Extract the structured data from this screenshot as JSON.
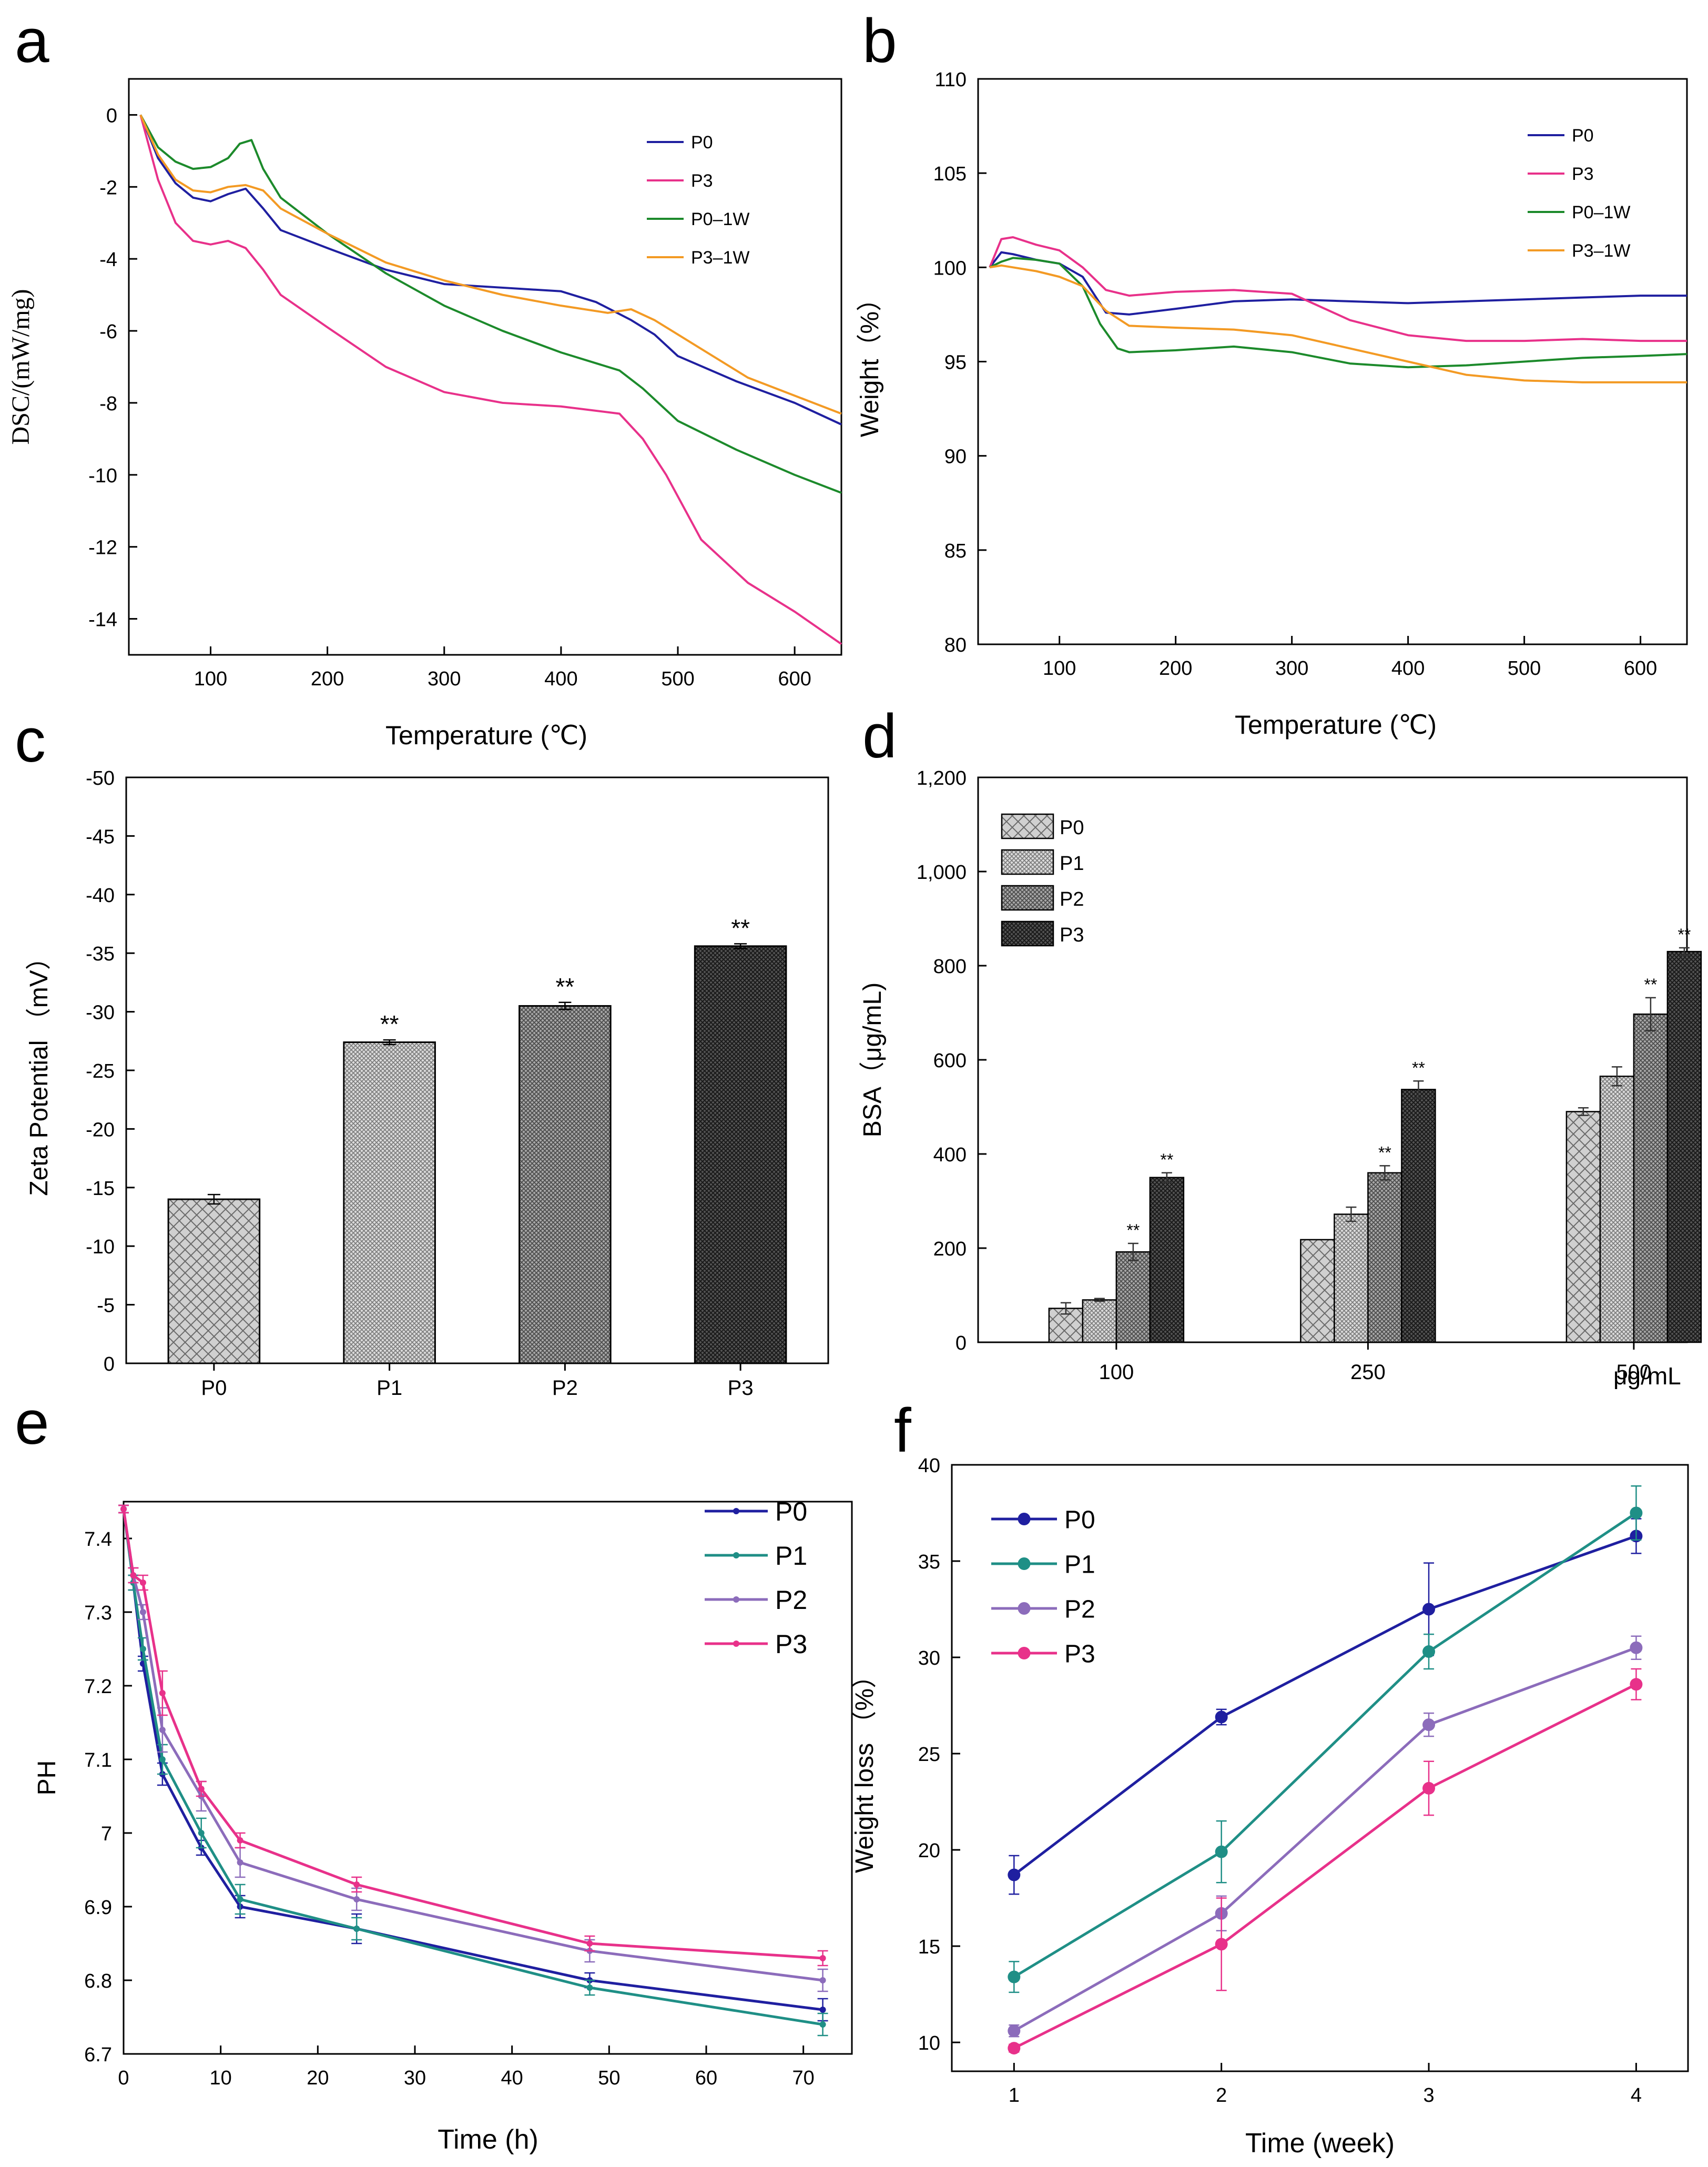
{
  "colors": {
    "P0": "#1f1fa0",
    "P3": "#e8318a",
    "P0_1W": "#1c8a2b",
    "P3_1W": "#f39a24",
    "P1": "#1f8f86",
    "P2": "#8c6cbb",
    "bar_P0": "#cfcfcf",
    "bar_P1": "#bdbdbd",
    "bar_P2": "#8f8f8f",
    "bar_P3": "#3a3a3a"
  },
  "chart_data": [
    {
      "id": "a",
      "panel_letter": "a",
      "type": "line",
      "xlabel": "Temperature (℃)",
      "ylabel": "DSC/(mW/mg)",
      "xlim": [
        30,
        640
      ],
      "ylim": [
        -15,
        1
      ],
      "xticks": [
        100,
        200,
        300,
        400,
        500,
        600
      ],
      "yticks": [
        0,
        -2,
        -4,
        -6,
        -8,
        -10,
        -12,
        -14
      ],
      "legend_position": "top-right",
      "series": [
        {
          "name": "P0",
          "color_key": "P0",
          "x": [
            40,
            55,
            70,
            85,
            100,
            115,
            130,
            145,
            160,
            200,
            250,
            300,
            350,
            400,
            430,
            460,
            480,
            500,
            550,
            600,
            640
          ],
          "y": [
            0,
            -1.2,
            -1.9,
            -2.3,
            -2.4,
            -2.2,
            -2.05,
            -2.6,
            -3.2,
            -3.7,
            -4.3,
            -4.7,
            -4.8,
            -4.9,
            -5.2,
            -5.7,
            -6.1,
            -6.7,
            -7.4,
            -8.0,
            -8.6
          ]
        },
        {
          "name": "P3",
          "color_key": "P3",
          "x": [
            40,
            55,
            70,
            85,
            100,
            115,
            130,
            145,
            160,
            200,
            250,
            300,
            350,
            400,
            450,
            470,
            490,
            520,
            560,
            600,
            640
          ],
          "y": [
            0,
            -1.8,
            -3.0,
            -3.5,
            -3.6,
            -3.5,
            -3.7,
            -4.3,
            -5.0,
            -5.9,
            -7.0,
            -7.7,
            -8.0,
            -8.1,
            -8.3,
            -9.0,
            -10.0,
            -11.8,
            -13.0,
            -13.8,
            -14.7
          ]
        },
        {
          "name": "P0–1W",
          "color_key": "P0_1W",
          "x": [
            40,
            55,
            70,
            85,
            100,
            115,
            125,
            135,
            145,
            160,
            200,
            250,
            300,
            350,
            400,
            450,
            470,
            500,
            550,
            600,
            640
          ],
          "y": [
            0,
            -0.9,
            -1.3,
            -1.5,
            -1.45,
            -1.2,
            -0.8,
            -0.7,
            -1.5,
            -2.3,
            -3.3,
            -4.4,
            -5.3,
            -6.0,
            -6.6,
            -7.1,
            -7.6,
            -8.5,
            -9.3,
            -10.0,
            -10.5
          ]
        },
        {
          "name": "P3–1W",
          "color_key": "P3_1W",
          "x": [
            40,
            55,
            70,
            85,
            100,
            115,
            130,
            145,
            160,
            200,
            250,
            300,
            350,
            400,
            440,
            460,
            480,
            520,
            560,
            600,
            640
          ],
          "y": [
            0,
            -1.1,
            -1.8,
            -2.1,
            -2.15,
            -2.0,
            -1.95,
            -2.1,
            -2.6,
            -3.3,
            -4.1,
            -4.6,
            -5.0,
            -5.3,
            -5.5,
            -5.4,
            -5.7,
            -6.5,
            -7.3,
            -7.8,
            -8.3
          ]
        }
      ]
    },
    {
      "id": "b",
      "panel_letter": "b",
      "type": "line",
      "xlabel": "Temperature (℃)",
      "ylabel": "Weight（%）",
      "xlim": [
        30,
        640
      ],
      "ylim": [
        80,
        110
      ],
      "xticks": [
        100,
        200,
        300,
        400,
        500,
        600
      ],
      "yticks": [
        80,
        85,
        90,
        95,
        100,
        105,
        110
      ],
      "legend_position": "top-right",
      "series": [
        {
          "name": "P0",
          "color_key": "P0",
          "x": [
            40,
            50,
            60,
            80,
            100,
            120,
            140,
            160,
            200,
            250,
            300,
            350,
            400,
            450,
            500,
            550,
            600,
            640
          ],
          "y": [
            100,
            100.8,
            100.7,
            100.4,
            100.2,
            99.5,
            97.6,
            97.5,
            97.8,
            98.2,
            98.3,
            98.2,
            98.1,
            98.2,
            98.3,
            98.4,
            98.5,
            98.5
          ]
        },
        {
          "name": "P3",
          "color_key": "P3",
          "x": [
            40,
            50,
            60,
            80,
            100,
            120,
            140,
            160,
            200,
            250,
            300,
            350,
            400,
            450,
            500,
            550,
            600,
            640
          ],
          "y": [
            100,
            101.5,
            101.6,
            101.2,
            100.9,
            100.0,
            98.8,
            98.5,
            98.7,
            98.8,
            98.6,
            97.2,
            96.4,
            96.1,
            96.1,
            96.2,
            96.1,
            96.1
          ]
        },
        {
          "name": "P0–1W",
          "color_key": "P0_1W",
          "x": [
            40,
            50,
            60,
            80,
            100,
            120,
            135,
            150,
            160,
            200,
            250,
            300,
            350,
            400,
            450,
            500,
            550,
            600,
            640
          ],
          "y": [
            100,
            100.3,
            100.5,
            100.4,
            100.2,
            99.0,
            97.0,
            95.7,
            95.5,
            95.6,
            95.8,
            95.5,
            94.9,
            94.7,
            94.8,
            95.0,
            95.2,
            95.3,
            95.4
          ]
        },
        {
          "name": "P3–1W",
          "color_key": "P3_1W",
          "x": [
            40,
            50,
            60,
            80,
            100,
            120,
            140,
            160,
            200,
            250,
            300,
            350,
            400,
            450,
            500,
            550,
            600,
            640
          ],
          "y": [
            100,
            100.1,
            100.0,
            99.8,
            99.5,
            99.0,
            97.7,
            96.9,
            96.8,
            96.7,
            96.4,
            95.7,
            95.0,
            94.3,
            94.0,
            93.9,
            93.9,
            93.9
          ]
        }
      ]
    },
    {
      "id": "c",
      "panel_letter": "c",
      "type": "bar",
      "xlabel": "",
      "ylabel": "Zeta Potential （mV）",
      "ylim": [
        0,
        -50
      ],
      "yticks": [
        0,
        -5,
        -10,
        -15,
        -20,
        -25,
        -30,
        -35,
        -40,
        -45,
        -50
      ],
      "categories": [
        "P0",
        "P1",
        "P2",
        "P3"
      ],
      "values": [
        -14.0,
        -27.4,
        -30.5,
        -35.6
      ],
      "errors": [
        0.4,
        0.2,
        0.3,
        0.2
      ],
      "annotations": [
        "",
        "**",
        "**",
        "**"
      ],
      "fill_keys": [
        "bar_P0",
        "bar_P1",
        "bar_P2",
        "bar_P3"
      ]
    },
    {
      "id": "d",
      "panel_letter": "d",
      "type": "bar",
      "xlabel": "μg/mL",
      "ylabel": "BSA（μg/mL)",
      "ylim": [
        0,
        1200
      ],
      "yticks": [
        0,
        200,
        400,
        600,
        800,
        1000,
        1200
      ],
      "ytick_labels": [
        "0",
        "200",
        "400",
        "600",
        "800",
        "1,000",
        "1,200"
      ],
      "categories": [
        "100",
        "250",
        "500"
      ],
      "legend_position": "top-left",
      "series": [
        {
          "name": "P0",
          "fill_key": "bar_P0",
          "values": [
            72,
            218,
            490
          ],
          "errors": [
            12,
            0,
            8
          ],
          "annotations": [
            "",
            "",
            ""
          ]
        },
        {
          "name": "P1",
          "fill_key": "bar_P1",
          "values": [
            90,
            272,
            565
          ],
          "errors": [
            3,
            15,
            20
          ],
          "annotations": [
            "",
            "",
            ""
          ]
        },
        {
          "name": "P2",
          "fill_key": "bar_P2",
          "values": [
            192,
            360,
            697
          ],
          "errors": [
            18,
            15,
            35
          ],
          "annotations": [
            "**",
            "**",
            "**"
          ]
        },
        {
          "name": "P3",
          "fill_key": "bar_P3",
          "values": [
            350,
            537,
            830
          ],
          "errors": [
            10,
            18,
            8
          ],
          "annotations": [
            "**",
            "**",
            "**"
          ]
        }
      ]
    },
    {
      "id": "e",
      "panel_letter": "e",
      "type": "line",
      "xlabel": "Time (h)",
      "ylabel": "PH",
      "xlim": [
        0,
        75
      ],
      "ylim": [
        6.7,
        7.45
      ],
      "xticks": [
        0,
        10,
        20,
        30,
        40,
        50,
        60,
        70
      ],
      "yticks": [
        6.7,
        6.8,
        6.9,
        7.0,
        7.1,
        7.2,
        7.3,
        7.4
      ],
      "legend_position": "top-right",
      "x": [
        0,
        1,
        2,
        4,
        8,
        12,
        24,
        48,
        72
      ],
      "series": [
        {
          "name": "P0",
          "color_key": "P0",
          "marker": "circle",
          "y": [
            7.44,
            7.34,
            7.23,
            7.08,
            6.98,
            6.9,
            6.87,
            6.8,
            6.76
          ],
          "errors": [
            0.005,
            0.01,
            0.01,
            0.015,
            0.01,
            0.015,
            0.02,
            0.01,
            0.015
          ]
        },
        {
          "name": "P1",
          "color_key": "P1",
          "marker": "circle",
          "y": [
            7.44,
            7.34,
            7.25,
            7.1,
            7.0,
            6.91,
            6.87,
            6.79,
            6.74
          ],
          "errors": [
            0.005,
            0.01,
            0.015,
            0.02,
            0.02,
            0.02,
            0.015,
            0.01,
            0.015
          ]
        },
        {
          "name": "P2",
          "color_key": "P2",
          "marker": "circle",
          "y": [
            7.44,
            7.35,
            7.3,
            7.14,
            7.05,
            6.96,
            6.91,
            6.84,
            6.8
          ],
          "errors": [
            0.005,
            0.01,
            0.01,
            0.03,
            0.02,
            0.02,
            0.015,
            0.015,
            0.015
          ]
        },
        {
          "name": "P3",
          "color_key": "P3",
          "marker": "circle",
          "y": [
            7.44,
            7.35,
            7.34,
            7.19,
            7.06,
            6.99,
            6.93,
            6.85,
            6.83
          ],
          "errors": [
            0.005,
            0.01,
            0.01,
            0.03,
            0.01,
            0.01,
            0.01,
            0.01,
            0.01
          ]
        }
      ]
    },
    {
      "id": "f",
      "panel_letter": "f",
      "type": "line",
      "xlabel": "Time (week)",
      "ylabel": "Weight loss （%）",
      "xlim": [
        0.7,
        4.25
      ],
      "ylim": [
        8.5,
        40
      ],
      "xticks": [
        1,
        2,
        3,
        4
      ],
      "yticks": [
        10,
        15,
        20,
        25,
        30,
        35,
        40
      ],
      "legend_position": "top-left",
      "x": [
        1,
        2,
        3,
        4
      ],
      "series": [
        {
          "name": "P0",
          "color_key": "P0",
          "marker": "circle",
          "y": [
            18.7,
            26.9,
            32.5,
            36.3
          ],
          "errors": [
            1.0,
            0.4,
            2.4,
            0.9
          ]
        },
        {
          "name": "P1",
          "color_key": "P1",
          "marker": "circle",
          "y": [
            13.4,
            19.9,
            30.3,
            37.5
          ],
          "errors": [
            0.8,
            1.6,
            0.9,
            1.4
          ]
        },
        {
          "name": "P2",
          "color_key": "P2",
          "marker": "circle",
          "y": [
            10.6,
            16.7,
            26.5,
            30.5
          ],
          "errors": [
            0.3,
            0.9,
            0.6,
            0.6
          ]
        },
        {
          "name": "P3",
          "color_key": "P3",
          "marker": "circle",
          "y": [
            9.7,
            15.1,
            23.2,
            28.6
          ],
          "errors": [
            0.2,
            2.4,
            1.4,
            0.8
          ]
        }
      ]
    }
  ]
}
